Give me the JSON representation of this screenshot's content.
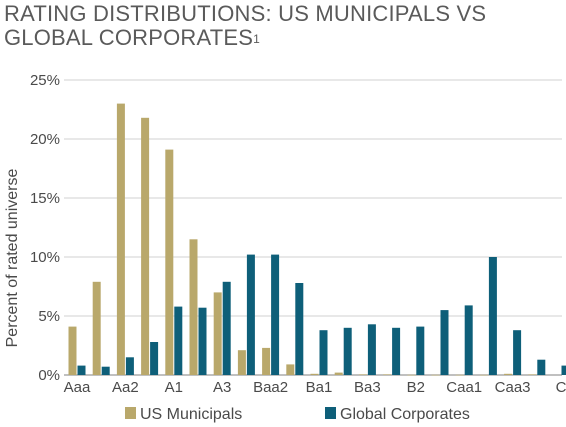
{
  "chart_data": {
    "type": "bar",
    "title_main": "RATING DISTRIBUTIONS: US MUNICIPALS VS GLOBAL CORPORATES",
    "title_footnote": "1",
    "ylabel": "Percent of rated universe",
    "xlabel": "",
    "ylim": [
      0,
      25
    ],
    "yticks": [
      0,
      5,
      10,
      15,
      20,
      25
    ],
    "ytick_labels": [
      "0%",
      "5%",
      "10%",
      "15%",
      "20%",
      "25%"
    ],
    "grid": true,
    "legend_placement": "bottom",
    "categories": [
      "Aaa",
      "Aa1",
      "Aa2",
      "Aa3",
      "A1",
      "A2",
      "A3",
      "Baa1",
      "Baa2",
      "Baa3",
      "Ba1",
      "Ba2",
      "Ba3",
      "B1",
      "B2",
      "B3",
      "Caa1",
      "Caa2",
      "Caa3",
      "Ca",
      "C"
    ],
    "xtick_labels": [
      "Aaa",
      "",
      "Aa2",
      "",
      "A1",
      "",
      "A3",
      "",
      "Baa2",
      "",
      "Ba1",
      "",
      "Ba3",
      "",
      "B2",
      "",
      "Caa1",
      "",
      "Caa3",
      "",
      "C"
    ],
    "series": [
      {
        "name": "US Municipals",
        "color": "#b9a86b",
        "values": [
          4.1,
          7.9,
          23.0,
          21.8,
          19.1,
          11.5,
          7.0,
          2.1,
          2.3,
          0.9,
          0.1,
          0.2,
          0.05,
          0.05,
          0.02,
          0.02,
          0.02,
          0.02,
          0.1,
          0.05,
          0.0
        ]
      },
      {
        "name": "Global Corporates",
        "color": "#0e5f79",
        "values": [
          0.8,
          0.7,
          1.5,
          2.8,
          5.8,
          5.7,
          7.9,
          10.2,
          10.2,
          7.8,
          3.8,
          4.0,
          4.3,
          4.0,
          4.1,
          5.5,
          5.9,
          10.0,
          3.8,
          1.3,
          0.8
        ]
      }
    ]
  }
}
